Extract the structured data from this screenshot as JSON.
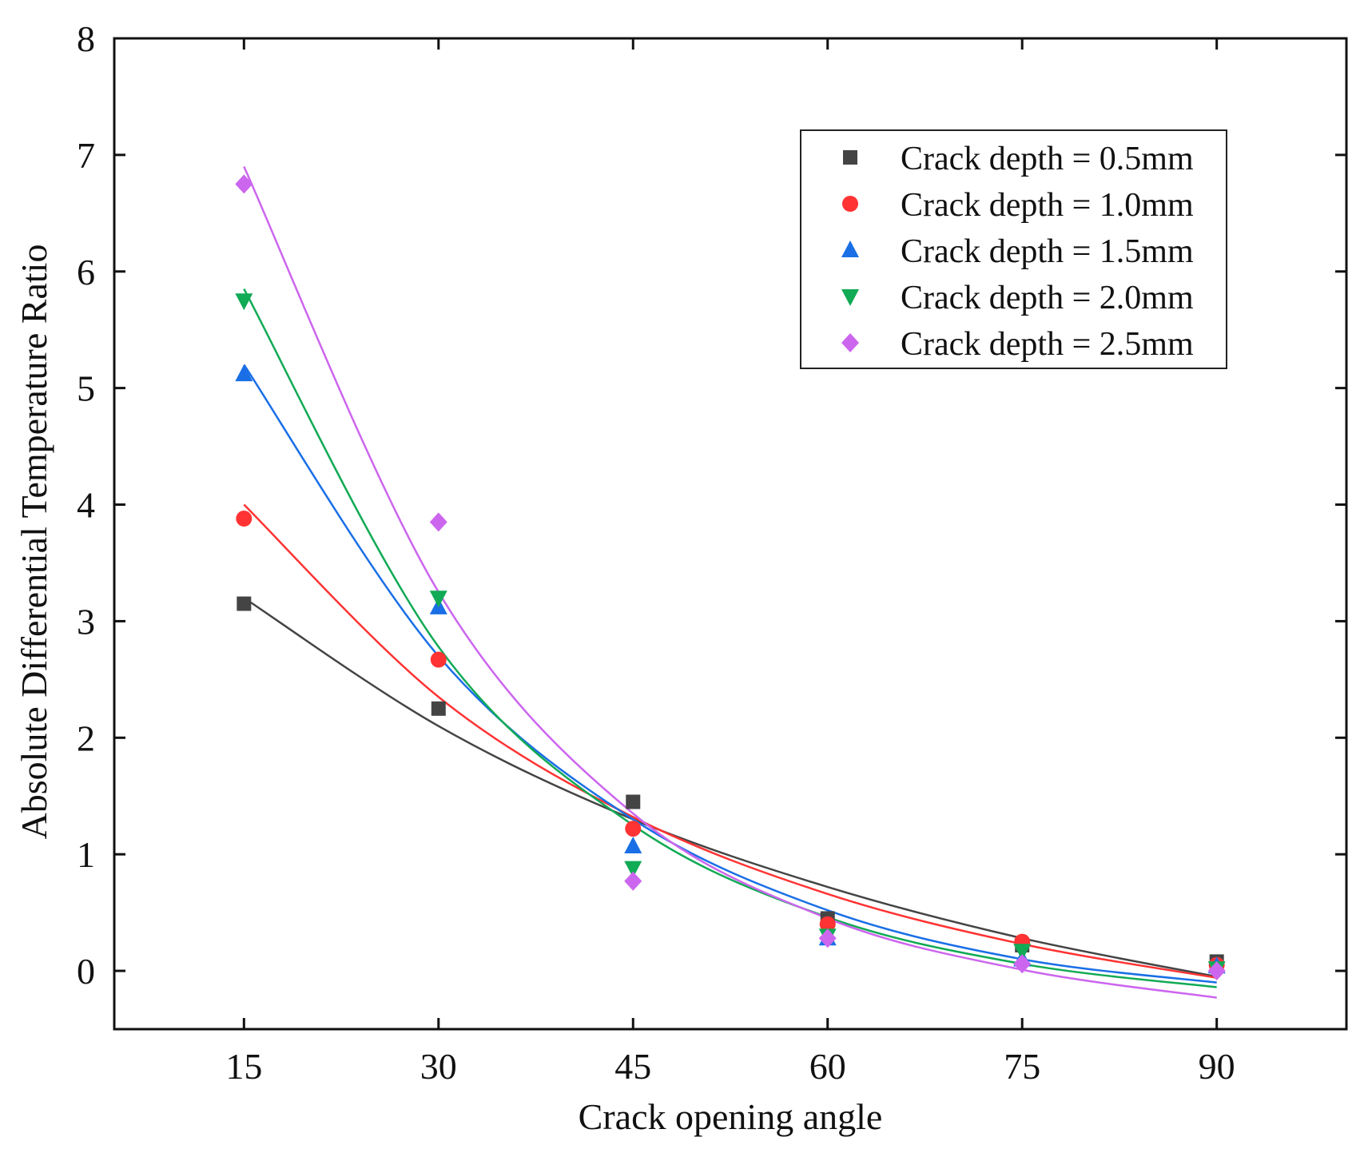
{
  "chart_data": {
    "type": "scatter",
    "title": "",
    "xlabel": "Crack opening angle",
    "ylabel": "Absolute Differential Temperature Ratio",
    "xlim": [
      5,
      100
    ],
    "ylim": [
      -0.5,
      8
    ],
    "xticks": [
      15,
      30,
      45,
      60,
      75,
      90
    ],
    "yticks": [
      0,
      1,
      2,
      3,
      4,
      5,
      6,
      7,
      8
    ],
    "grid": false,
    "legend_position": "top-right",
    "fit": "exponential decay with offset",
    "series": [
      {
        "name": "Crack depth = 0.5mm",
        "color": "#444444",
        "marker": "square",
        "x": [
          15,
          30,
          45,
          60,
          75,
          90
        ],
        "y": [
          3.15,
          2.25,
          1.45,
          0.45,
          0.22,
          0.08
        ],
        "fit_curve": {
          "x": [
            15,
            30,
            45,
            60,
            75,
            90
          ],
          "y": [
            3.2,
            2.1,
            1.3,
            0.72,
            0.28,
            -0.05
          ]
        }
      },
      {
        "name": "Crack depth = 1.0mm",
        "color": "#ff3333",
        "marker": "circle",
        "x": [
          15,
          30,
          45,
          60,
          75,
          90
        ],
        "y": [
          3.88,
          2.67,
          1.22,
          0.4,
          0.25,
          0.05
        ],
        "fit_curve": {
          "x": [
            15,
            30,
            45,
            60,
            75,
            90
          ],
          "y": [
            4.0,
            2.35,
            1.32,
            0.66,
            0.23,
            -0.06
          ]
        }
      },
      {
        "name": "Crack depth = 1.5mm",
        "color": "#1a6fe6",
        "marker": "triangle-up",
        "x": [
          15,
          30,
          45,
          60,
          75,
          90
        ],
        "y": [
          5.12,
          3.12,
          1.07,
          0.28,
          0.1,
          0.04
        ],
        "fit_curve": {
          "x": [
            15,
            30,
            45,
            60,
            75,
            90
          ],
          "y": [
            5.2,
            2.7,
            1.3,
            0.52,
            0.1,
            -0.1
          ]
        }
      },
      {
        "name": "Crack depth = 2.0mm",
        "color": "#11aa55",
        "marker": "triangle-down",
        "x": [
          15,
          30,
          45,
          60,
          75,
          90
        ],
        "y": [
          5.75,
          3.2,
          0.88,
          0.3,
          0.17,
          0.02
        ],
        "fit_curve": {
          "x": [
            15,
            30,
            45,
            60,
            75,
            90
          ],
          "y": [
            5.85,
            2.78,
            1.25,
            0.46,
            0.06,
            -0.14
          ]
        }
      },
      {
        "name": "Crack depth = 2.5mm",
        "color": "#cc66ee",
        "marker": "diamond",
        "x": [
          15,
          30,
          45,
          60,
          75,
          90
        ],
        "y": [
          6.75,
          3.85,
          0.77,
          0.28,
          0.06,
          0.0
        ],
        "fit_curve": {
          "x": [
            15,
            30,
            45,
            60,
            75,
            90
          ],
          "y": [
            6.9,
            3.25,
            1.35,
            0.45,
            0.01,
            -0.23
          ]
        }
      }
    ]
  }
}
